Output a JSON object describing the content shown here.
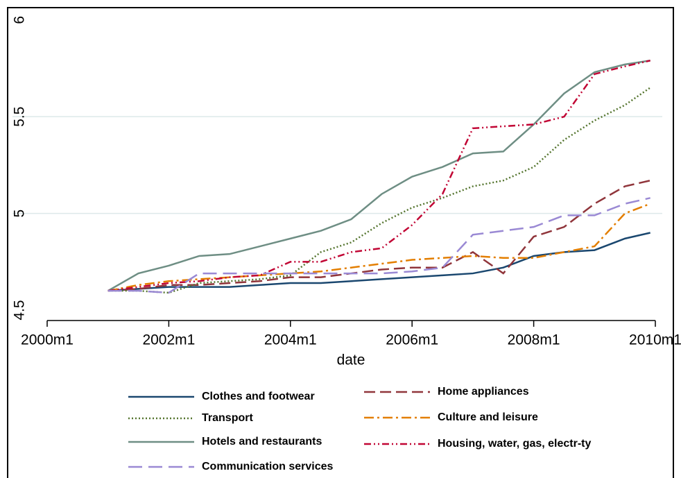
{
  "chart_data": {
    "type": "line",
    "x_label": "date",
    "xlim": [
      480,
      600
    ],
    "xticks": [
      {
        "value": 480,
        "label": "2000m1"
      },
      {
        "value": 504,
        "label": "2002m1"
      },
      {
        "value": 528,
        "label": "2004m1"
      },
      {
        "value": 552,
        "label": "2006m1"
      },
      {
        "value": 576,
        "label": "2008m1"
      },
      {
        "value": 600,
        "label": "2010m1"
      }
    ],
    "ylim": [
      4.45,
      6.06
    ],
    "yticks": [
      4.5,
      5,
      5.5,
      6
    ],
    "grid": true,
    "x": [
      492,
      498,
      504,
      510,
      516,
      522,
      528,
      534,
      540,
      546,
      552,
      558,
      564,
      570,
      576,
      582,
      588,
      594,
      599
    ],
    "series": [
      {
        "name": "Clothes and footwear",
        "color": "#1a476f",
        "values": [
          4.6,
          4.61,
          4.62,
          4.62,
          4.62,
          4.63,
          4.64,
          4.64,
          4.65,
          4.66,
          4.67,
          4.68,
          4.69,
          4.72,
          4.78,
          4.8,
          4.81,
          4.87,
          4.9
        ]
      },
      {
        "name": "Home appliances",
        "color": "#90353b",
        "values": [
          4.6,
          4.61,
          4.63,
          4.63,
          4.64,
          4.65,
          4.67,
          4.67,
          4.69,
          4.71,
          4.72,
          4.72,
          4.8,
          4.69,
          4.88,
          4.93,
          5.05,
          5.14,
          5.17
        ]
      },
      {
        "name": "Transport",
        "color": "#55752f",
        "values": [
          4.6,
          4.6,
          4.59,
          4.64,
          4.65,
          4.66,
          4.68,
          4.8,
          4.85,
          4.95,
          5.03,
          5.08,
          5.14,
          5.17,
          5.24,
          5.38,
          5.48,
          5.56,
          5.65
        ]
      },
      {
        "name": "Culture and leisure",
        "color": "#e37e00",
        "values": [
          4.6,
          4.63,
          4.65,
          4.66,
          4.67,
          4.68,
          4.69,
          4.7,
          4.72,
          4.74,
          4.76,
          4.77,
          4.78,
          4.77,
          4.77,
          4.8,
          4.83,
          5.0,
          5.05
        ]
      },
      {
        "name": "Hotels and restaurants",
        "color": "#6e8e84",
        "values": [
          4.6,
          4.69,
          4.73,
          4.78,
          4.79,
          4.83,
          4.87,
          4.91,
          4.97,
          5.1,
          5.19,
          5.24,
          5.31,
          5.32,
          5.46,
          5.62,
          5.73,
          5.77,
          5.79
        ]
      },
      {
        "name": "Housing, water, gas, electr-ty",
        "color": "#c10534",
        "values": [
          4.6,
          4.62,
          4.64,
          4.65,
          4.67,
          4.68,
          4.75,
          4.75,
          4.8,
          4.82,
          4.94,
          5.1,
          5.44,
          5.45,
          5.46,
          5.5,
          5.72,
          5.76,
          5.79
        ]
      },
      {
        "name": "Communication services",
        "color": "#9a89d4",
        "values": [
          4.6,
          4.6,
          4.59,
          4.69,
          4.69,
          4.69,
          4.69,
          4.69,
          4.69,
          4.69,
          4.7,
          4.72,
          4.89,
          4.91,
          4.93,
          4.99,
          4.99,
          5.05,
          5.08
        ]
      }
    ]
  }
}
